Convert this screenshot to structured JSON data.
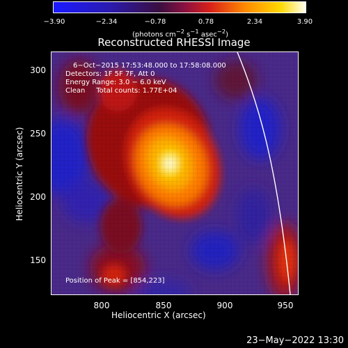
{
  "colorbar": {
    "ticks": [
      "−3.90",
      "−2.34",
      "−0.78",
      "0.78",
      "2.34",
      "3.90"
    ],
    "unit_base": "(photons cm",
    "unit_exp1": "−2",
    "unit_mid1": " s",
    "unit_exp2": "−1",
    "unit_mid2": " asec",
    "unit_exp3": "−2",
    "unit_close": ")"
  },
  "title": "Reconstructed RHESSI Image",
  "info": {
    "time": "6−Oct−2015 17:53:48.000 to 17:58:08.000",
    "detectors": "Detectors: 1F 5F 7F, Att 0",
    "energy": "Energy Range: 3.0 − 6.0 keV",
    "clean": "Clean     Total counts: 1.77E+04",
    "peak": "Position of Peak = [854,223]"
  },
  "axes": {
    "xlabel": "Heliocentric X (arcsec)",
    "ylabel": "Heliocentric Y (arcsec)",
    "xticks": [
      "800",
      "850",
      "900",
      "950"
    ],
    "yticks": [
      "300",
      "250",
      "200",
      "150"
    ]
  },
  "date": "23−May−2022 13:30"
}
